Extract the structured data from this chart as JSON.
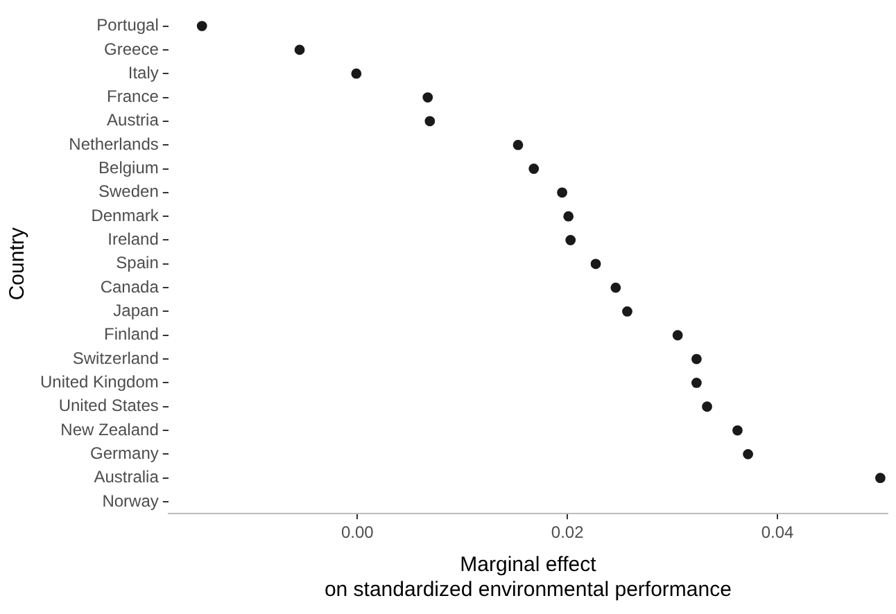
{
  "chart_data": {
    "type": "scatter",
    "orientation": "horizontal",
    "xlabel": "Marginal effect\non standardized environmental performance",
    "ylabel": "Country",
    "categories": [
      "Portugal",
      "Greece",
      "Italy",
      "France",
      "Austria",
      "Netherlands",
      "Belgium",
      "Sweden",
      "Denmark",
      "Ireland",
      "Spain",
      "Canada",
      "Japan",
      "Finland",
      "Switzerland",
      "United Kingdom",
      "United States",
      "New Zealand",
      "Germany",
      "Australia",
      "Norway"
    ],
    "series": [
      {
        "color": "#1a1a1a",
        "values": [
          -0.0148,
          -0.0055,
          -0.0001,
          0.0067,
          0.0069,
          0.0153,
          0.0168,
          0.0195,
          0.0201,
          0.0203,
          0.0227,
          0.0246,
          0.0257,
          0.0305,
          0.0323,
          0.0323,
          0.0333,
          0.0362,
          0.0372,
          0.0498,
          null
        ]
      }
    ],
    "xlim": [
      -0.018,
      0.0505
    ],
    "xticks": [
      {
        "value": 0,
        "label": "0.00"
      },
      {
        "value": 0.02,
        "label": "0.02"
      },
      {
        "value": 0.04,
        "label": "0.04"
      }
    ],
    "marker": "circle",
    "grid": false,
    "legend": false
  }
}
